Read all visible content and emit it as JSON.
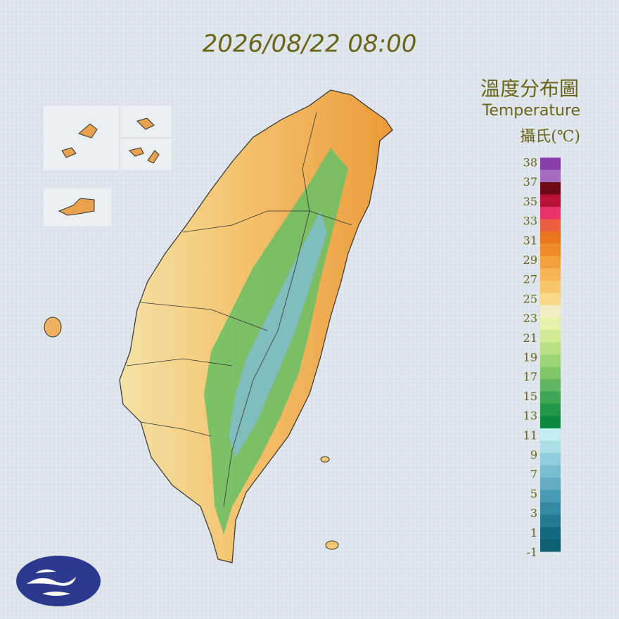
{
  "timestamp": "2026/08/22 08:00",
  "legend": {
    "title": "溫度分布圖",
    "subtitle": "Temperature",
    "unit": "攝氏(℃)",
    "ticks": [
      38,
      37,
      35,
      33,
      31,
      29,
      27,
      25,
      23,
      21,
      19,
      17,
      15,
      13,
      11,
      9,
      7,
      5,
      3,
      1,
      -1
    ],
    "colors": [
      "#8a3fa8",
      "#a66cc0",
      "#6e0a16",
      "#b8123a",
      "#e8336b",
      "#f0603e",
      "#e8761e",
      "#ee8a2c",
      "#f3a03e",
      "#f6b456",
      "#f8c66c",
      "#f9d888",
      "#f3efc4",
      "#e6f1ae",
      "#d2ea94",
      "#b8e182",
      "#9cd576",
      "#80c66a",
      "#62b662",
      "#40a656",
      "#22964a",
      "#0c8a40",
      "#c2eef1",
      "#aadfe7",
      "#92cddc",
      "#7abdd0",
      "#62adc4",
      "#4a9ab6",
      "#3589a5",
      "#227a93",
      "#136a80",
      "#0c6072"
    ]
  }
}
